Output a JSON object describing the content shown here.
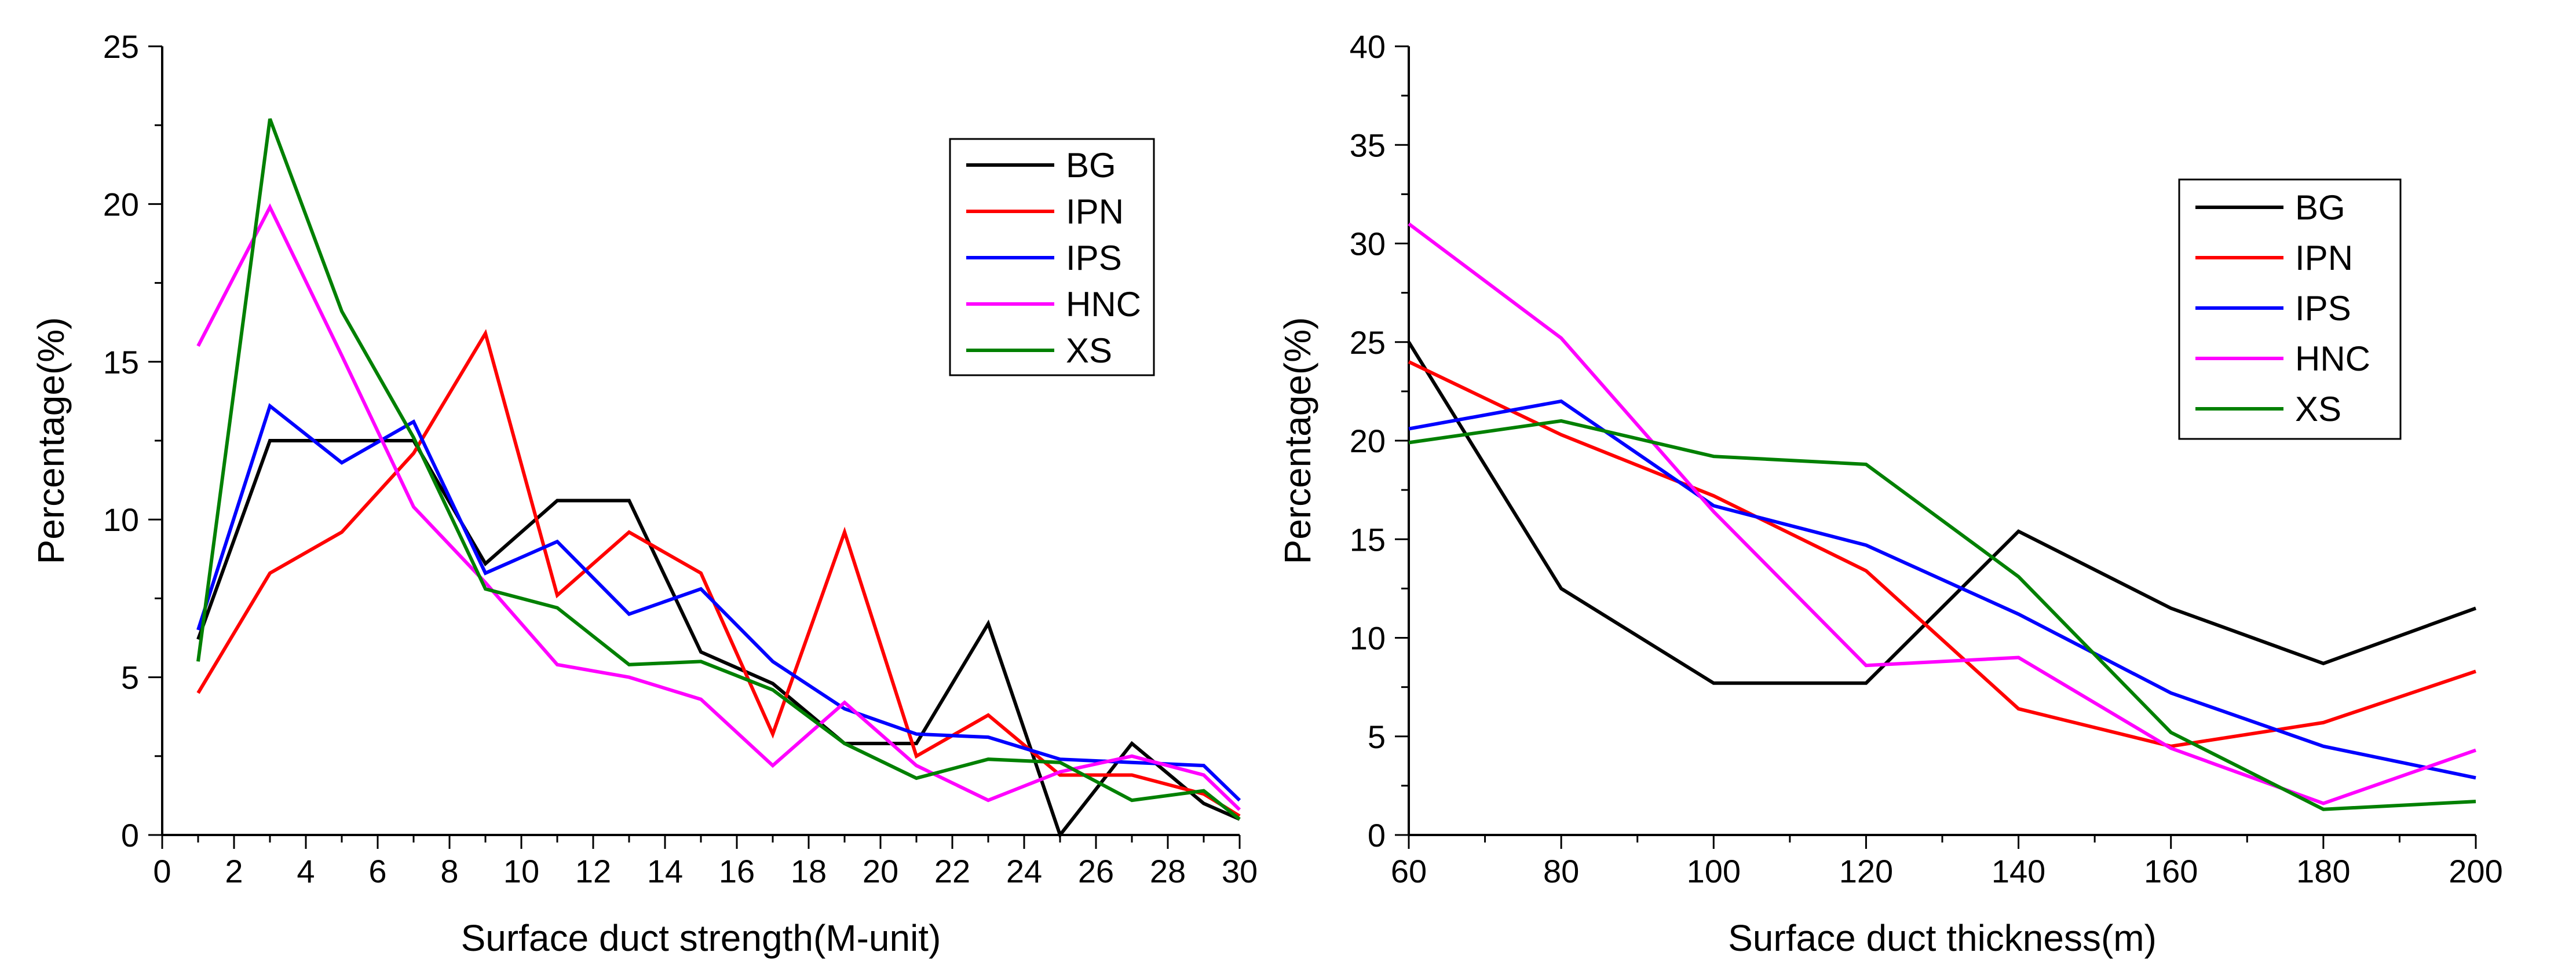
{
  "chart_data": [
    {
      "type": "line",
      "xlabel": "Surface duct strength(M-unit)",
      "ylabel": "Percentage(%)",
      "xlim": [
        0,
        30
      ],
      "ylim": [
        0,
        25
      ],
      "xticks": [
        0,
        2,
        4,
        6,
        8,
        10,
        12,
        14,
        16,
        18,
        20,
        22,
        24,
        26,
        28,
        30
      ],
      "yticks": [
        0,
        5,
        10,
        15,
        20,
        25
      ],
      "legend_position": "top-right",
      "x": [
        1,
        3,
        5,
        7,
        9,
        11,
        13,
        15,
        17,
        19,
        21,
        23,
        25,
        27,
        29,
        30
      ],
      "series": [
        {
          "name": "BG",
          "color": "#000000",
          "values": [
            6.2,
            12.5,
            12.5,
            12.5,
            8.6,
            10.6,
            10.6,
            5.8,
            4.8,
            2.9,
            2.9,
            6.7,
            0.0,
            2.9,
            1.0,
            0.5
          ]
        },
        {
          "name": "IPN",
          "color": "#ff0000",
          "values": [
            4.5,
            8.3,
            9.6,
            12.1,
            15.9,
            7.6,
            9.6,
            8.3,
            3.2,
            9.6,
            2.5,
            3.8,
            1.9,
            1.9,
            1.3,
            0.6
          ]
        },
        {
          "name": "IPS",
          "color": "#0000ff",
          "values": [
            6.5,
            13.6,
            11.8,
            13.1,
            8.3,
            9.3,
            7.0,
            7.8,
            5.5,
            4.0,
            3.2,
            3.1,
            2.4,
            2.3,
            2.2,
            1.1
          ]
        },
        {
          "name": "HNC",
          "color": "#ff00ff",
          "values": [
            15.5,
            19.9,
            15.2,
            10.4,
            8.0,
            5.4,
            5.0,
            4.3,
            2.2,
            4.2,
            2.2,
            1.1,
            2.0,
            2.5,
            1.9,
            0.8
          ]
        },
        {
          "name": "XS",
          "color": "#008000",
          "values": [
            5.5,
            22.7,
            16.6,
            12.6,
            7.8,
            7.2,
            5.4,
            5.5,
            4.6,
            2.9,
            1.8,
            2.4,
            2.3,
            1.1,
            1.4,
            0.5
          ]
        }
      ]
    },
    {
      "type": "line",
      "xlabel": "Surface duct thickness(m)",
      "ylabel": "Percentage(%)",
      "xlim": [
        60,
        200
      ],
      "ylim": [
        0,
        40
      ],
      "xticks": [
        60,
        80,
        100,
        120,
        140,
        160,
        180,
        200
      ],
      "yticks": [
        0,
        5,
        10,
        15,
        20,
        25,
        30,
        35,
        40
      ],
      "legend_position": "top-right",
      "x": [
        60,
        80,
        100,
        120,
        140,
        160,
        180,
        200
      ],
      "series": [
        {
          "name": "BG",
          "color": "#000000",
          "values": [
            25.0,
            12.5,
            7.7,
            7.7,
            15.4,
            11.5,
            8.7,
            11.5
          ]
        },
        {
          "name": "IPN",
          "color": "#ff0000",
          "values": [
            24.0,
            20.3,
            17.2,
            13.4,
            6.4,
            4.5,
            5.7,
            8.3
          ]
        },
        {
          "name": "IPS",
          "color": "#0000ff",
          "values": [
            20.6,
            22.0,
            16.7,
            14.7,
            11.2,
            7.2,
            4.5,
            2.9
          ]
        },
        {
          "name": "HNC",
          "color": "#ff00ff",
          "values": [
            31.0,
            25.2,
            16.4,
            8.6,
            9.0,
            4.4,
            1.6,
            4.3
          ]
        },
        {
          "name": "XS",
          "color": "#008000",
          "values": [
            19.9,
            21.0,
            19.2,
            18.8,
            13.1,
            5.2,
            1.3,
            1.7
          ]
        }
      ]
    }
  ]
}
